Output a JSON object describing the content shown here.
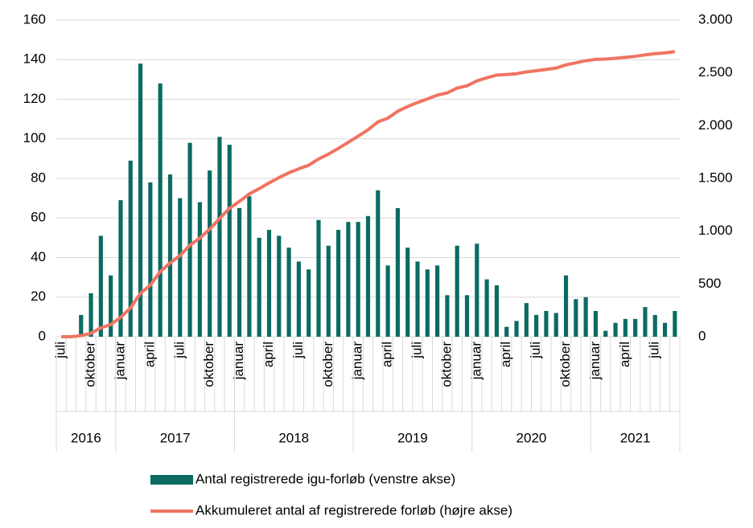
{
  "chart_data": {
    "type": "bar_line",
    "categories": [
      "juli",
      null,
      null,
      "oktober",
      null,
      null,
      "januar",
      null,
      null,
      "april",
      null,
      null,
      "juli",
      null,
      null,
      "oktober",
      null,
      null,
      "januar",
      null,
      null,
      "april",
      null,
      null,
      "juli",
      null,
      null,
      "oktober",
      null,
      null,
      "januar",
      null,
      null,
      "april",
      null,
      null,
      "juli",
      null,
      null,
      "oktober",
      null,
      null,
      "januar",
      null,
      null,
      "april",
      null,
      null,
      "juli",
      null,
      null,
      "oktober",
      null,
      null,
      "januar",
      null,
      null,
      "april",
      null,
      null,
      "juli",
      null,
      null
    ],
    "year_groups": [
      {
        "label": "2016",
        "months": 6
      },
      {
        "label": "2017",
        "months": 12
      },
      {
        "label": "2018",
        "months": 12
      },
      {
        "label": "2019",
        "months": 12
      },
      {
        "label": "2020",
        "months": 12
      },
      {
        "label": "2021",
        "months": 9
      }
    ],
    "series": [
      {
        "name": "Antal registrerede igu-forløb (venstre akse)",
        "type": "bar",
        "color": "#0b6b62",
        "axis": "y",
        "values": [
          0,
          0,
          11,
          22,
          51,
          31,
          69,
          89,
          138,
          78,
          128,
          82,
          70,
          98,
          68,
          84,
          101,
          97,
          65,
          71,
          50,
          54,
          51,
          45,
          38,
          34,
          59,
          46,
          54,
          58,
          58,
          61,
          74,
          36,
          65,
          45,
          38,
          34,
          36,
          21,
          46,
          21,
          47,
          29,
          26,
          5,
          8,
          17,
          11,
          13,
          12,
          31,
          19,
          20,
          13,
          3,
          7,
          9,
          9,
          15,
          11,
          7,
          13
        ]
      },
      {
        "name": "Akkumuleret antal af registrerede forløb (højre akse)",
        "type": "line",
        "color": "#f07462",
        "axis": "y2",
        "values": [
          0,
          0,
          11,
          33,
          84,
          115,
          184,
          273,
          411,
          489,
          617,
          699,
          769,
          867,
          935,
          1019,
          1120,
          1217,
          1282,
          1353,
          1403,
          1457,
          1508,
          1553,
          1591,
          1625,
          1684,
          1730,
          1784,
          1842,
          1900,
          1961,
          2035,
          2071,
          2136,
          2181,
          2219,
          2253,
          2289,
          2310,
          2356,
          2377,
          2424,
          2453,
          2479,
          2484,
          2492,
          2509,
          2520,
          2533,
          2545,
          2576,
          2595,
          2615,
          2628,
          2631,
          2638,
          2647,
          2656,
          2671,
          2682,
          2689,
          2702
        ]
      }
    ],
    "ylim": [
      0,
      160
    ],
    "yticks": [
      0,
      20,
      40,
      60,
      80,
      100,
      120,
      140,
      160
    ],
    "y2lim": [
      0,
      3000
    ],
    "y2ticks": [
      0,
      500,
      {
        "value": 1000,
        "label": "1.000"
      },
      {
        "value": 1500,
        "label": "1.500"
      },
      {
        "value": 2000,
        "label": "2.000"
      },
      {
        "value": 2500,
        "label": "2.500"
      },
      {
        "value": 3000,
        "label": "3.000"
      }
    ],
    "grid": true,
    "legend": "bottom"
  }
}
